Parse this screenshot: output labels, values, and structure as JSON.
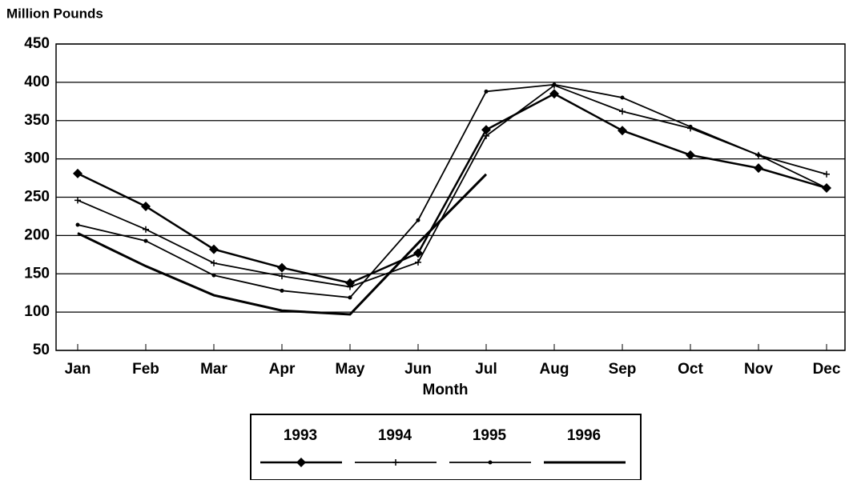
{
  "chart_data": {
    "type": "line",
    "ylabel": "Million Pounds",
    "xlabel": "Month",
    "categories": [
      "Jan",
      "Feb",
      "Mar",
      "Apr",
      "May",
      "Jun",
      "Jul",
      "Aug",
      "Sep",
      "Oct",
      "Nov",
      "Dec"
    ],
    "series": [
      {
        "name": "1993",
        "color": "#000000",
        "marker": "diamond",
        "values": [
          281,
          238,
          182,
          158,
          138,
          177,
          338,
          385,
          337,
          305,
          288,
          262
        ]
      },
      {
        "name": "1994",
        "color": "#000000",
        "marker": "plus",
        "values": [
          246,
          208,
          164,
          147,
          133,
          165,
          330,
          396,
          362,
          340,
          305,
          280
        ]
      },
      {
        "name": "1995",
        "color": "#000000",
        "marker": "dot",
        "values": [
          214,
          193,
          148,
          128,
          119,
          220,
          388,
          397,
          380,
          342,
          305,
          262
        ]
      },
      {
        "name": "1996",
        "color": "#000000",
        "marker": "none",
        "values": [
          203,
          160,
          122,
          102,
          97,
          190,
          280,
          null,
          null,
          null,
          null,
          null
        ]
      }
    ],
    "ylim": [
      50,
      450
    ],
    "yticks": [
      50,
      100,
      150,
      200,
      250,
      300,
      350,
      400,
      450
    ],
    "grid": true
  }
}
